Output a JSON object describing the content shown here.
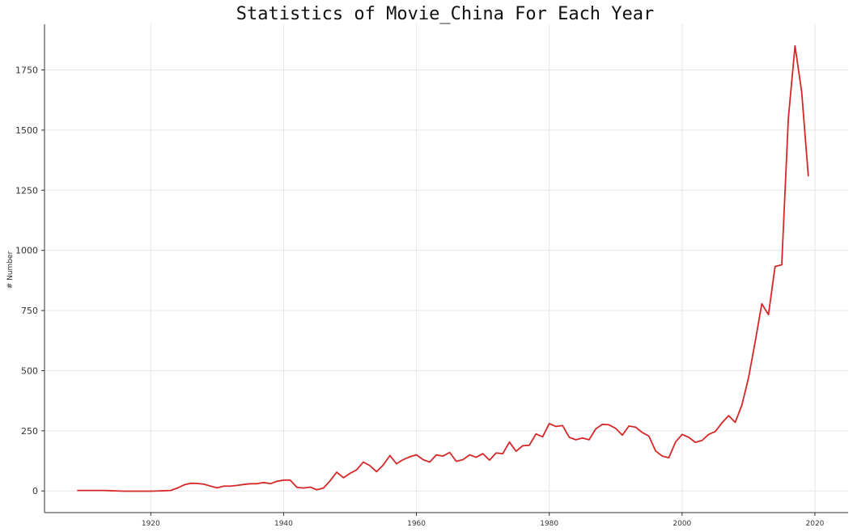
{
  "chart_data": {
    "type": "line",
    "title": "Statistics of Movie_China For Each Year",
    "xlabel": "",
    "ylabel": "# Number",
    "xlim": [
      1904,
      2025
    ],
    "ylim": [
      -90,
      1940
    ],
    "x_ticks": [
      1920,
      1940,
      1960,
      1980,
      2000,
      2020
    ],
    "y_ticks": [
      0,
      250,
      500,
      750,
      1000,
      1250,
      1500,
      1750
    ],
    "grid": true,
    "line_color": "#d62728",
    "series": [
      {
        "x": [
          1909,
          1910,
          1911,
          1912,
          1913,
          1914,
          1915,
          1916,
          1917,
          1918,
          1919,
          1920,
          1921,
          1922,
          1923,
          1924,
          1925,
          1926,
          1927,
          1928,
          1929,
          1930,
          1931,
          1932,
          1933,
          1934,
          1935,
          1936,
          1937,
          1938,
          1939,
          1940,
          1941,
          1942,
          1943,
          1944,
          1945,
          1946,
          1947,
          1948,
          1949,
          1950,
          1951,
          1952,
          1953,
          1954,
          1955,
          1956,
          1957,
          1958,
          1959,
          1960,
          1961,
          1962,
          1963,
          1964,
          1965,
          1966,
          1967,
          1968,
          1969,
          1970,
          1971,
          1972,
          1973,
          1974,
          1975,
          1976,
          1977,
          1978,
          1979,
          1980,
          1981,
          1982,
          1983,
          1984,
          1985,
          1986,
          1987,
          1988,
          1989,
          1990,
          1991,
          1992,
          1993,
          1994,
          1995,
          1996,
          1997,
          1998,
          1999,
          2000,
          2001,
          2002,
          2003,
          2004,
          2005,
          2006,
          2007,
          2008,
          2009,
          2010,
          2011,
          2012,
          2013,
          2014,
          2015,
          2016,
          2017,
          2018,
          2019
        ],
        "values": [
          2,
          2,
          2,
          2,
          2,
          1,
          0,
          -1,
          -1,
          -1,
          -1,
          -1,
          0,
          1,
          2,
          12,
          25,
          32,
          31,
          28,
          20,
          13,
          20,
          20,
          23,
          27,
          30,
          30,
          35,
          30,
          40,
          45,
          45,
          15,
          12,
          16,
          5,
          12,
          42,
          78,
          55,
          73,
          88,
          120,
          105,
          80,
          108,
          147,
          113,
          130,
          142,
          150,
          130,
          120,
          150,
          145,
          160,
          123,
          130,
          150,
          140,
          155,
          128,
          158,
          155,
          203,
          165,
          188,
          190,
          237,
          225,
          280,
          268,
          272,
          223,
          213,
          220,
          213,
          258,
          277,
          275,
          260,
          232,
          270,
          265,
          243,
          228,
          167,
          145,
          138,
          203,
          235,
          223,
          202,
          210,
          235,
          247,
          283,
          313,
          285,
          357,
          470,
          620,
          778,
          733,
          933,
          940,
          1550,
          1850,
          1660,
          1310
        ]
      }
    ]
  }
}
